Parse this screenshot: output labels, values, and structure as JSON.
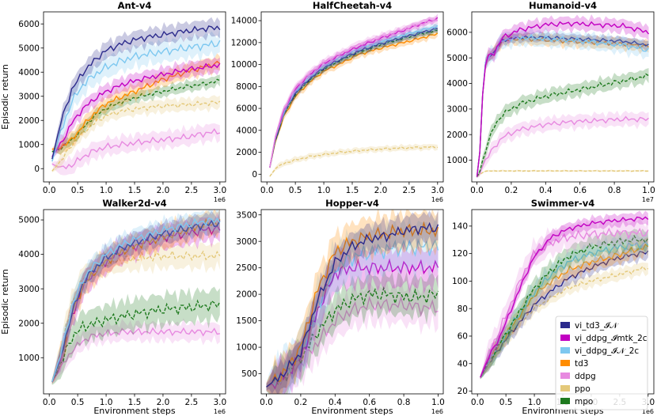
{
  "figure": {
    "x_axis_label": "Environment steps",
    "y_axis_label": "Episodic return"
  },
  "legend": [
    {
      "name": "vi_td3_I_N",
      "label": "vi_td3_𝓘𝒩",
      "color": "#2b2a8c",
      "dashed": false
    },
    {
      "name": "vi_ddpg_I_mtk_2c",
      "label": "vi_ddpg_𝓘mtk_2c",
      "color": "#c200c2",
      "dashed": false
    },
    {
      "name": "vi_ddpg_I_N_2c",
      "label": "vi_ddpg_𝓘𝒩_2c",
      "color": "#7ec8f0",
      "dashed": false
    },
    {
      "name": "td3",
      "label": "td3",
      "color": "#ff8c00",
      "dashed": false
    },
    {
      "name": "ddpg",
      "label": "ddpg",
      "color": "#e78ae0",
      "dashed": false
    },
    {
      "name": "ppo",
      "label": "ppo",
      "color": "#e4c97a",
      "dashed": true
    },
    {
      "name": "mpo",
      "label": "mpo",
      "color": "#1e7a1e",
      "dashed": true
    }
  ],
  "chart_data": [
    {
      "type": "line",
      "title": "Ant-v4",
      "xlabel": "",
      "ylabel": "Episodic return",
      "xlim": [
        -0.1,
        3.1
      ],
      "ylim": [
        -550,
        6500
      ],
      "x_scale_label": "1e6",
      "xticks": [
        0,
        0.5,
        1,
        1.5,
        2,
        2.5,
        3
      ],
      "xtick_labels": [
        "0.0",
        "0.5",
        "1.0",
        "1.5",
        "2.0",
        "2.5",
        "3.0"
      ],
      "yticks": [
        0,
        1000,
        2000,
        3000,
        4000,
        5000,
        6000
      ],
      "ytick_labels": [
        "0",
        "1000",
        "2000",
        "3000",
        "4000",
        "5000",
        "6000"
      ],
      "x": [
        0.05,
        0.2,
        0.4,
        0.6,
        0.8,
        1.0,
        1.3,
        1.6,
        2.0,
        2.4,
        2.7,
        3.0
      ],
      "series": [
        {
          "name": "vi_td3_I_N",
          "values": [
            400,
            1900,
            3300,
            4000,
            4500,
            4900,
            5200,
            5400,
            5550,
            5700,
            5800,
            5850
          ],
          "spread": 400
        },
        {
          "name": "vi_ddpg_I_N_2c",
          "values": [
            300,
            1500,
            2800,
            3500,
            3900,
            4200,
            4500,
            4700,
            4850,
            5000,
            5100,
            5200
          ],
          "spread": 500
        },
        {
          "name": "vi_ddpg_I_mtk_2c",
          "values": [
            500,
            1000,
            1900,
            2500,
            2900,
            3200,
            3500,
            3700,
            3900,
            4100,
            4200,
            4300
          ],
          "spread": 350
        },
        {
          "name": "td3",
          "values": [
            800,
            900,
            1200,
            1800,
            2300,
            2700,
            3000,
            3300,
            3700,
            4000,
            4200,
            4400
          ],
          "spread": 350
        },
        {
          "name": "mpo",
          "values": [
            700,
            850,
            1200,
            1700,
            2200,
            2500,
            2800,
            3000,
            3200,
            3400,
            3500,
            3650
          ],
          "spread": 250
        },
        {
          "name": "ppo",
          "values": [
            -100,
            300,
            1000,
            1500,
            1900,
            2200,
            2400,
            2500,
            2600,
            2650,
            2700,
            2750
          ],
          "spread": 300
        },
        {
          "name": "ddpg",
          "values": [
            200,
            0,
            150,
            500,
            750,
            900,
            1000,
            1100,
            1200,
            1300,
            1450,
            1550
          ],
          "spread": 400
        }
      ]
    },
    {
      "type": "line",
      "title": "HalfCheetah-v4",
      "xlabel": "",
      "ylabel": "",
      "xlim": [
        -0.1,
        3.1
      ],
      "ylim": [
        -700,
        14800
      ],
      "x_scale_label": "1e6",
      "xticks": [
        0,
        0.5,
        1,
        1.5,
        2,
        2.5,
        3
      ],
      "xtick_labels": [
        "0.0",
        "0.5",
        "1.0",
        "1.5",
        "2.0",
        "2.5",
        "3.0"
      ],
      "yticks": [
        0,
        2000,
        4000,
        6000,
        8000,
        10000,
        12000,
        14000
      ],
      "ytick_labels": [
        "0",
        "2000",
        "4000",
        "6000",
        "8000",
        "10000",
        "12000",
        "14000"
      ],
      "x": [
        0.05,
        0.15,
        0.3,
        0.5,
        0.75,
        1.0,
        1.3,
        1.6,
        2.0,
        2.4,
        2.7,
        3.0
      ],
      "series": [
        {
          "name": "ddpg",
          "values": [
            600,
            3500,
            6000,
            7900,
            9200,
            10200,
            11000,
            11800,
            12500,
            13200,
            13700,
            14100
          ],
          "spread": 400
        },
        {
          "name": "vi_ddpg_I_mtk_2c",
          "values": [
            600,
            3400,
            5900,
            7800,
            9100,
            10100,
            10900,
            11600,
            12400,
            13100,
            13700,
            14200
          ],
          "spread": 350
        },
        {
          "name": "vi_ddpg_I_N_2c",
          "values": [
            600,
            3300,
            5700,
            7600,
            8900,
            9900,
            10700,
            11400,
            12100,
            12700,
            13100,
            13500
          ],
          "spread": 350
        },
        {
          "name": "vi_td3_I_N",
          "values": [
            600,
            3200,
            5600,
            7400,
            8700,
            9700,
            10500,
            11200,
            11900,
            12500,
            12900,
            13300
          ],
          "spread": 400
        },
        {
          "name": "mpo",
          "values": [
            600,
            3100,
            5500,
            7300,
            8600,
            9600,
            10400,
            11100,
            11800,
            12400,
            12800,
            13100
          ],
          "spread": 300
        },
        {
          "name": "td3",
          "values": [
            600,
            3000,
            5300,
            7100,
            8400,
            9400,
            10100,
            10900,
            11500,
            12000,
            12400,
            12800
          ],
          "spread": 400
        },
        {
          "name": "ppo",
          "values": [
            -200,
            500,
            1000,
            1300,
            1600,
            1800,
            2000,
            2150,
            2300,
            2400,
            2450,
            2500
          ],
          "spread": 300
        }
      ]
    },
    {
      "type": "line",
      "title": "Humanoid-v4",
      "xlabel": "",
      "ylabel": "",
      "xlim": [
        -0.03,
        1.03
      ],
      "ylim": [
        150,
        6800
      ],
      "x_scale_label": "1e7",
      "xticks": [
        0,
        0.2,
        0.4,
        0.6,
        0.8,
        1.0
      ],
      "xtick_labels": [
        "0.0",
        "0.2",
        "0.4",
        "0.6",
        "0.8",
        "1.0"
      ],
      "yticks": [
        1000,
        2000,
        3000,
        4000,
        5000,
        6000
      ],
      "ytick_labels": [
        "1000",
        "2000",
        "3000",
        "4000",
        "5000",
        "6000"
      ],
      "x": [
        0.0,
        0.02,
        0.04,
        0.07,
        0.1,
        0.15,
        0.25,
        0.4,
        0.55,
        0.7,
        0.85,
        1.0
      ],
      "series": [
        {
          "name": "vi_ddpg_I_mtk_2c",
          "values": [
            350,
            1500,
            4600,
            5100,
            5200,
            5800,
            6100,
            6300,
            6350,
            6300,
            6250,
            6000
          ],
          "spread": 300
        },
        {
          "name": "vi_ddpg_I_N_2c",
          "values": [
            350,
            1500,
            4600,
            5100,
            5200,
            5700,
            5800,
            5750,
            5700,
            5600,
            5500,
            5300
          ],
          "spread": 350
        },
        {
          "name": "vi_td3_I_N",
          "values": [
            350,
            1500,
            4600,
            5100,
            5200,
            5700,
            5800,
            5800,
            5750,
            5700,
            5650,
            5500
          ],
          "spread": 200
        },
        {
          "name": "td3",
          "values": [
            350,
            1500,
            4600,
            5100,
            5200,
            5700,
            5750,
            5700,
            5650,
            5600,
            5550,
            5450
          ],
          "spread": 250
        },
        {
          "name": "mpo",
          "values": [
            350,
            600,
            1200,
            1800,
            2300,
            2800,
            3200,
            3500,
            3700,
            3900,
            4100,
            4300
          ],
          "spread": 300
        },
        {
          "name": "ddpg",
          "values": [
            350,
            500,
            900,
            1200,
            1500,
            1900,
            2200,
            2400,
            2500,
            2550,
            2600,
            2600
          ],
          "spread": 300
        },
        {
          "name": "ppo",
          "values": [
            350,
            450,
            550,
            580,
            580,
            580,
            580,
            580,
            580,
            580,
            580,
            580
          ],
          "spread": 40
        }
      ]
    },
    {
      "type": "line",
      "title": "Walker2d-v4",
      "xlabel": "Environment steps",
      "ylabel": "Episodic return",
      "xlim": [
        -0.1,
        3.1
      ],
      "ylim": [
        -50,
        5300
      ],
      "x_scale_label": "1e6",
      "xticks": [
        0,
        0.5,
        1,
        1.5,
        2,
        2.5,
        3
      ],
      "xtick_labels": [
        "0.0",
        "0.5",
        "1.0",
        "1.5",
        "2.0",
        "2.5",
        "3.0"
      ],
      "yticks": [
        1000,
        2000,
        3000,
        4000,
        5000
      ],
      "ytick_labels": [
        "1000",
        "2000",
        "3000",
        "4000",
        "5000"
      ],
      "x": [
        0.05,
        0.2,
        0.4,
        0.6,
        0.8,
        1.0,
        1.3,
        1.6,
        2.0,
        2.4,
        2.7,
        3.0
      ],
      "series": [
        {
          "name": "vi_ddpg_I_N_2c",
          "values": [
            300,
            1100,
            2500,
            3300,
            3700,
            4000,
            4300,
            4500,
            4700,
            4850,
            4950,
            5000
          ],
          "spread": 350
        },
        {
          "name": "vi_td3_I_N",
          "values": [
            300,
            1000,
            2300,
            3200,
            3600,
            3900,
            4200,
            4400,
            4600,
            4750,
            4850,
            4900
          ],
          "spread": 350
        },
        {
          "name": "td3",
          "values": [
            300,
            1000,
            2300,
            3100,
            3500,
            3800,
            4100,
            4300,
            4500,
            4700,
            4850,
            4950
          ],
          "spread": 400
        },
        {
          "name": "vi_ddpg_I_mtk_2c",
          "values": [
            300,
            1000,
            2200,
            3100,
            3500,
            3800,
            4100,
            4300,
            4500,
            4600,
            4700,
            4750
          ],
          "spread": 400
        },
        {
          "name": "ppo",
          "values": [
            300,
            1200,
            2600,
            3300,
            3600,
            3750,
            3850,
            3900,
            3950,
            3950,
            3950,
            3950
          ],
          "spread": 400
        },
        {
          "name": "mpo",
          "values": [
            300,
            800,
            1600,
            1900,
            2000,
            2100,
            2200,
            2300,
            2400,
            2450,
            2500,
            2550
          ],
          "spread": 500
        },
        {
          "name": "ddpg",
          "values": [
            300,
            700,
            1200,
            1500,
            1650,
            1700,
            1750,
            1750,
            1750,
            1750,
            1750,
            1750
          ],
          "spread": 300
        }
      ]
    },
    {
      "type": "line",
      "title": "Hopper-v4",
      "xlabel": "Environment steps",
      "ylabel": "",
      "xlim": [
        -0.03,
        1.03
      ],
      "ylim": [
        120,
        3600
      ],
      "x_scale_label": "1e6",
      "xticks": [
        0,
        0.2,
        0.4,
        0.6,
        0.8,
        1.0
      ],
      "xtick_labels": [
        "0.0",
        "0.2",
        "0.4",
        "0.6",
        "0.8",
        "1.0"
      ],
      "yticks": [
        500,
        1000,
        1500,
        2000,
        2500,
        3000,
        3500
      ],
      "ytick_labels": [
        "500",
        "1000",
        "1500",
        "2000",
        "2500",
        "3000",
        "3500"
      ],
      "x": [
        0.0,
        0.1,
        0.2,
        0.3,
        0.4,
        0.5,
        0.6,
        0.7,
        0.8,
        0.9,
        1.0
      ],
      "series": [
        {
          "name": "vi_td3_I_N",
          "values": [
            250,
            500,
            900,
            1900,
            2600,
            2900,
            3050,
            3100,
            3200,
            3250,
            3250
          ],
          "spread": 300
        },
        {
          "name": "td3",
          "values": [
            250,
            500,
            1000,
            2100,
            2800,
            3000,
            3100,
            3150,
            3200,
            3200,
            3200
          ],
          "spread": 400
        },
        {
          "name": "vi_ddpg_I_N_2c",
          "values": [
            250,
            500,
            900,
            1800,
            2500,
            2700,
            2800,
            2850,
            2900,
            2900,
            2900
          ],
          "spread": 500
        },
        {
          "name": "vi_ddpg_I_mtk_2c",
          "values": [
            250,
            450,
            800,
            1700,
            2400,
            2500,
            2500,
            2500,
            2500,
            2500,
            2500
          ],
          "spread": 400
        },
        {
          "name": "mpo",
          "values": [
            250,
            450,
            800,
            1300,
            1700,
            1900,
            2000,
            2000,
            1950,
            1950,
            2000
          ],
          "spread": 400
        },
        {
          "name": "ddpg",
          "values": [
            250,
            400,
            700,
            1100,
            1500,
            1700,
            1800,
            1800,
            1800,
            1750,
            1750
          ],
          "spread": 400
        }
      ]
    },
    {
      "type": "line",
      "title": "Swimmer-v4",
      "xlabel": "Environment steps",
      "ylabel": "",
      "xlim": [
        -0.1,
        3.1
      ],
      "ylim": [
        18,
        152
      ],
      "x_scale_label": "1e6",
      "xticks": [
        0,
        0.5,
        1,
        1.5,
        2,
        2.5,
        3
      ],
      "xtick_labels": [
        "0.0",
        "0.5",
        "1.0",
        "1.5",
        "2.0",
        "2.5",
        "3.0"
      ],
      "yticks": [
        20,
        40,
        60,
        80,
        100,
        120,
        140
      ],
      "ytick_labels": [
        "20",
        "40",
        "60",
        "80",
        "100",
        "120",
        "140"
      ],
      "x": [
        0.05,
        0.2,
        0.4,
        0.6,
        0.8,
        1.0,
        1.3,
        1.6,
        2.0,
        2.4,
        2.7,
        3.0
      ],
      "series": [
        {
          "name": "vi_ddpg_I_mtk_2c",
          "values": [
            30,
            45,
            60,
            80,
            100,
            118,
            132,
            138,
            142,
            144,
            145,
            146
          ],
          "spread": 5
        },
        {
          "name": "ddpg",
          "values": [
            30,
            48,
            65,
            85,
            105,
            120,
            128,
            132,
            134,
            135,
            135,
            135
          ],
          "spread": 10
        },
        {
          "name": "mpo",
          "values": [
            30,
            42,
            55,
            68,
            82,
            95,
            108,
            118,
            125,
            128,
            130,
            130
          ],
          "spread": 8
        },
        {
          "name": "vi_ddpg_I_N_2c",
          "values": [
            30,
            42,
            55,
            68,
            80,
            92,
            105,
            114,
            120,
            124,
            126,
            127
          ],
          "spread": 8
        },
        {
          "name": "td3",
          "values": [
            30,
            42,
            55,
            67,
            78,
            90,
            100,
            108,
            114,
            118,
            122,
            125
          ],
          "spread": 7
        },
        {
          "name": "vi_td3_I_N",
          "values": [
            30,
            40,
            52,
            63,
            73,
            83,
            93,
            102,
            110,
            116,
            119,
            121
          ],
          "spread": 6
        },
        {
          "name": "ppo",
          "values": [
            30,
            40,
            52,
            62,
            72,
            80,
            88,
            95,
            100,
            104,
            107,
            110
          ],
          "spread": 5
        }
      ]
    }
  ]
}
